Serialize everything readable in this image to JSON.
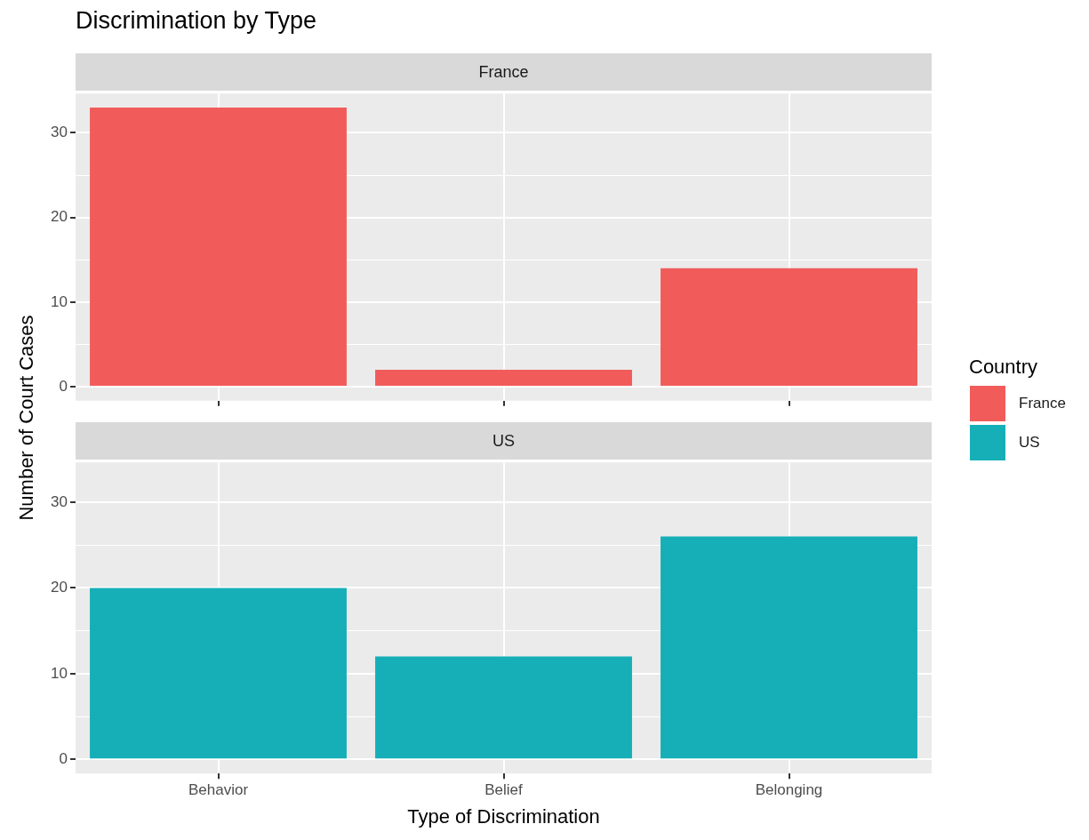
{
  "chart_data": [
    {
      "type": "bar",
      "title": "Discrimination by Type",
      "subtitle": "France",
      "ylabel": "Number of Court Cases",
      "legend_title": "Country",
      "legend": "right",
      "categories": [
        null,
        null,
        null
      ],
      "series": [
        {
          "name": "France",
          "color": "#f15c5b",
          "values": [
            33,
            2,
            14
          ]
        }
      ],
      "ylim": [
        -1.65,
        34.65
      ],
      "yticks": [
        0,
        {
          "value": 5,
          "label": null
        },
        10,
        {
          "value": 15,
          "label": null
        },
        20,
        {
          "value": 25,
          "label": null
        },
        30
      ],
      "grid": true,
      "tick_labels": "y"
    },
    {
      "type": "bar",
      "subtitle": "US",
      "xlabel": "Type of Discrimination",
      "legend": "right",
      "categories": [
        "Behavior",
        "Belief",
        "Belonging"
      ],
      "series": [
        {
          "name": "US",
          "color": "#16afb7",
          "values": [
            20,
            12,
            26
          ]
        }
      ],
      "ylim": [
        -1.65,
        34.65
      ],
      "yticks": [
        0,
        {
          "value": 5,
          "label": null
        },
        10,
        {
          "value": 15,
          "label": null
        },
        20,
        {
          "value": 25,
          "label": null
        },
        30
      ],
      "grid": true
    }
  ]
}
